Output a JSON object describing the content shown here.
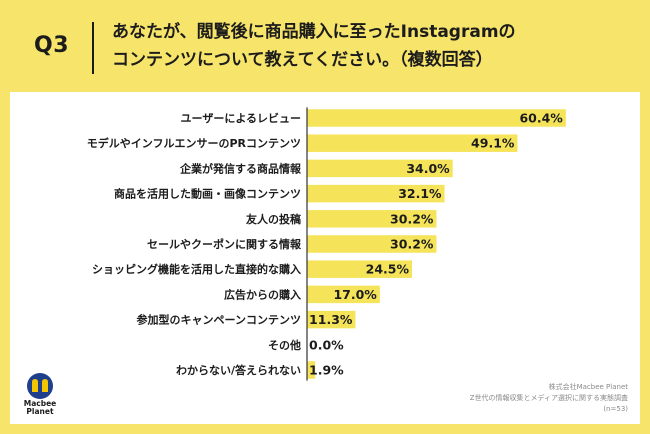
{
  "header": {
    "question_number": "Q3",
    "question_line1": "あなたが、閲覧後に商品購入に至ったInstagramの",
    "question_line2": "コンテンツについて教えてください。（複数回答）"
  },
  "logo": {
    "line1": "Macbee",
    "line2": "Planet"
  },
  "credit": {
    "line1": "株式会社Macbee Planet",
    "line2": "Z世代の情報収集とメディア選択に関する実態調査",
    "line3": "(n=53)"
  },
  "colors": {
    "background": "#F7E46A",
    "bar": "#F5E45A",
    "text": "#1c1c1c",
    "axis": "#333333"
  },
  "chart_data": {
    "type": "bar",
    "orientation": "horizontal",
    "categories": [
      "ユーザーによるレビュー",
      "モデルやインフルエンサーのPRコンテンツ",
      "企業が発信する商品情報",
      "商品を活用した動画・画像コンテンツ",
      "友人の投稿",
      "セールやクーポンに関する情報",
      "ショッピング機能を活用した直接的な購入",
      "広告からの購入",
      "参加型のキャンペーンコンテンツ",
      "その他",
      "わからない/答えられない"
    ],
    "values": [
      60.4,
      49.1,
      34.0,
      32.1,
      30.2,
      30.2,
      24.5,
      17.0,
      11.3,
      0.0,
      1.9
    ],
    "value_labels": [
      "60.4%",
      "49.1%",
      "34.0%",
      "32.1%",
      "30.2%",
      "30.2%",
      "24.5%",
      "17.0%",
      "11.3%",
      "0.0%",
      "1.9%"
    ],
    "xlim": [
      0,
      70
    ]
  }
}
